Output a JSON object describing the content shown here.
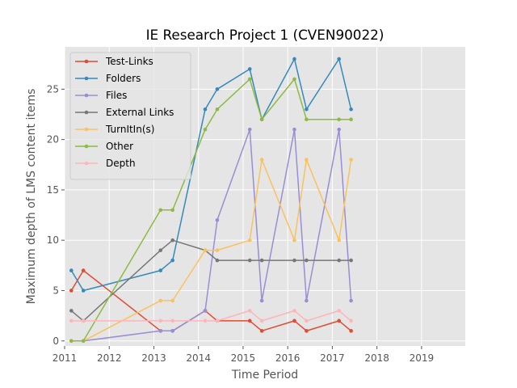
{
  "chart_data": {
    "type": "line",
    "title": "IE Research Project 1 (CVEN90022)",
    "xlabel": "Time Period",
    "ylabel": "Maximum depth of LMS content items",
    "xlim": [
      2011.0,
      2019.98
    ],
    "ylim": [
      -0.5,
      29.2
    ],
    "x_ticks": [
      2011,
      2012,
      2013,
      2014,
      2015,
      2016,
      2017,
      2018,
      2019
    ],
    "y_ticks": [
      0,
      5,
      10,
      15,
      20,
      25
    ],
    "grid": true,
    "legend_position": "top-left",
    "series": [
      {
        "name": "Test-Links",
        "color": "#E24A33",
        "points": [
          [
            2011.15,
            5
          ],
          [
            2011.42,
            7
          ],
          [
            2013.15,
            1
          ],
          [
            2013.42,
            1
          ],
          [
            2014.15,
            3
          ],
          [
            2014.42,
            2
          ],
          [
            2015.15,
            2
          ],
          [
            2015.42,
            1
          ],
          [
            2016.15,
            2
          ],
          [
            2016.42,
            1
          ],
          [
            2017.15,
            2
          ],
          [
            2017.42,
            1
          ]
        ]
      },
      {
        "name": "Folders",
        "color": "#348ABD",
        "points": [
          [
            2011.15,
            7
          ],
          [
            2011.42,
            5
          ],
          [
            2013.15,
            7
          ],
          [
            2013.42,
            8
          ],
          [
            2014.15,
            23
          ],
          [
            2014.42,
            25
          ],
          [
            2015.15,
            27
          ],
          [
            2015.42,
            22
          ],
          [
            2016.15,
            28
          ],
          [
            2016.42,
            23
          ],
          [
            2017.15,
            28
          ],
          [
            2017.42,
            23
          ]
        ]
      },
      {
        "name": "Files",
        "color": "#988ED5",
        "points": [
          [
            2011.15,
            0
          ],
          [
            2011.42,
            0
          ],
          [
            2013.15,
            1
          ],
          [
            2013.42,
            1
          ],
          [
            2014.15,
            3
          ],
          [
            2014.42,
            12
          ],
          [
            2015.15,
            21
          ],
          [
            2015.42,
            4
          ],
          [
            2016.15,
            21
          ],
          [
            2016.42,
            4
          ],
          [
            2017.15,
            21
          ],
          [
            2017.42,
            4
          ]
        ]
      },
      {
        "name": "External Links",
        "color": "#777777",
        "points": [
          [
            2011.15,
            3
          ],
          [
            2011.42,
            2
          ],
          [
            2013.15,
            9
          ],
          [
            2013.42,
            10
          ],
          [
            2014.15,
            9
          ],
          [
            2014.42,
            8
          ],
          [
            2015.15,
            8
          ],
          [
            2015.42,
            8
          ],
          [
            2016.15,
            8
          ],
          [
            2016.42,
            8
          ],
          [
            2017.15,
            8
          ],
          [
            2017.42,
            8
          ]
        ]
      },
      {
        "name": "TurnItIn(s)",
        "color": "#FBC15E",
        "points": [
          [
            2011.15,
            0
          ],
          [
            2011.42,
            0
          ],
          [
            2013.15,
            4
          ],
          [
            2013.42,
            4
          ],
          [
            2014.15,
            9
          ],
          [
            2014.42,
            9
          ],
          [
            2015.15,
            10
          ],
          [
            2015.42,
            18
          ],
          [
            2016.15,
            10
          ],
          [
            2016.42,
            18
          ],
          [
            2017.15,
            10
          ],
          [
            2017.42,
            18
          ]
        ]
      },
      {
        "name": "Other",
        "color": "#8EBA42",
        "points": [
          [
            2011.15,
            0
          ],
          [
            2011.42,
            0
          ],
          [
            2013.15,
            13
          ],
          [
            2013.42,
            13
          ],
          [
            2014.15,
            21
          ],
          [
            2014.42,
            23
          ],
          [
            2015.15,
            26
          ],
          [
            2015.42,
            22
          ],
          [
            2016.15,
            26
          ],
          [
            2016.42,
            22
          ],
          [
            2017.15,
            22
          ],
          [
            2017.42,
            22
          ]
        ]
      },
      {
        "name": "Depth",
        "color": "#FFB5B8",
        "points": [
          [
            2011.15,
            2
          ],
          [
            2011.42,
            2
          ],
          [
            2013.15,
            2
          ],
          [
            2013.42,
            2
          ],
          [
            2014.15,
            2
          ],
          [
            2014.42,
            2
          ],
          [
            2015.15,
            3
          ],
          [
            2015.42,
            2
          ],
          [
            2016.15,
            3
          ],
          [
            2016.42,
            2
          ],
          [
            2017.15,
            3
          ],
          [
            2017.42,
            2
          ]
        ]
      }
    ]
  }
}
